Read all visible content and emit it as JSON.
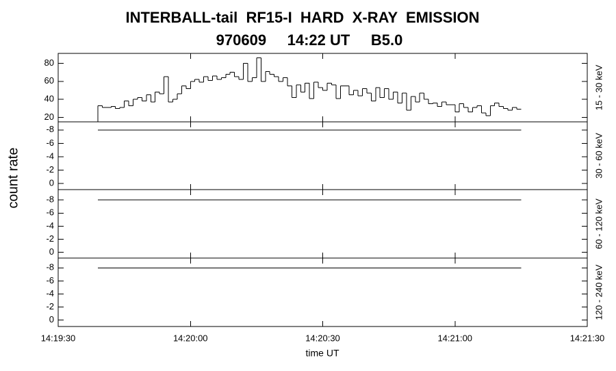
{
  "header": {
    "title": "INTERBALL-tail  RF15-I  HARD  X-RAY  EMISSION",
    "subtitle": "970609     14:22 UT     B5.0",
    "ylabel": "count rate",
    "xlabel": "time UT"
  },
  "chart_data": [
    {
      "type": "step",
      "label": "15 - 30 keV",
      "color": "#000000",
      "ylim": [
        15,
        91
      ],
      "yticks": [
        20,
        40,
        60,
        80
      ],
      "x": [
        "14:19:39",
        "14:19:40",
        "14:19:41",
        "14:19:42",
        "14:19:43",
        "14:19:44",
        "14:19:45",
        "14:19:46",
        "14:19:47",
        "14:19:48",
        "14:19:49",
        "14:19:50",
        "14:19:51",
        "14:19:52",
        "14:19:53",
        "14:19:54",
        "14:19:55",
        "14:19:56",
        "14:19:57",
        "14:19:58",
        "14:19:59",
        "14:20:00",
        "14:20:01",
        "14:20:02",
        "14:20:03",
        "14:20:04",
        "14:20:05",
        "14:20:06",
        "14:20:07",
        "14:20:08",
        "14:20:09",
        "14:20:10",
        "14:20:11",
        "14:20:12",
        "14:20:13",
        "14:20:14",
        "14:20:15",
        "14:20:16",
        "14:20:17",
        "14:20:18",
        "14:20:19",
        "14:20:20",
        "14:20:21",
        "14:20:22",
        "14:20:23",
        "14:20:24",
        "14:20:25",
        "14:20:26",
        "14:20:27",
        "14:20:28",
        "14:20:29",
        "14:20:30",
        "14:20:31",
        "14:20:32",
        "14:20:33",
        "14:20:34",
        "14:20:35",
        "14:20:36",
        "14:20:37",
        "14:20:38",
        "14:20:39",
        "14:20:40",
        "14:20:41",
        "14:20:42",
        "14:20:43",
        "14:20:44",
        "14:20:45",
        "14:20:46",
        "14:20:47",
        "14:20:48",
        "14:20:49",
        "14:20:50",
        "14:20:51",
        "14:20:52",
        "14:20:53",
        "14:20:54",
        "14:20:55",
        "14:20:56",
        "14:20:57",
        "14:20:58",
        "14:20:59",
        "14:21:00",
        "14:21:01",
        "14:21:02",
        "14:21:03",
        "14:21:04",
        "14:21:05",
        "14:21:06",
        "14:21:07",
        "14:21:08",
        "14:21:09",
        "14:21:10",
        "14:21:11",
        "14:21:12",
        "14:21:13",
        "14:21:14"
      ],
      "values": [
        33,
        31,
        31,
        32,
        30,
        31,
        38,
        33,
        40,
        42,
        38,
        45,
        37,
        48,
        46,
        65,
        37,
        40,
        46,
        55,
        52,
        60,
        62,
        59,
        65,
        61,
        66,
        62,
        64,
        68,
        70,
        65,
        62,
        80,
        60,
        64,
        86,
        60,
        71,
        68,
        65,
        60,
        64,
        55,
        42,
        56,
        48,
        58,
        41,
        59,
        53,
        50,
        58,
        56,
        41,
        55,
        55,
        45,
        50,
        44,
        52,
        47,
        38,
        53,
        42,
        52,
        40,
        48,
        36,
        47,
        28,
        43,
        37,
        47,
        40,
        35,
        36,
        32,
        37,
        34,
        34,
        26,
        35,
        31,
        26,
        31,
        33,
        25,
        22,
        33,
        36,
        32,
        30,
        28,
        31,
        29
      ]
    },
    {
      "type": "line",
      "label": "30 - 60 keV",
      "color": "#000000",
      "ylim": [
        0.9,
        -9.2
      ],
      "yticks": [
        -8,
        -6,
        -4,
        -2,
        0
      ],
      "x": [
        "14:19:39",
        "14:21:15"
      ],
      "values": [
        -8,
        -8
      ]
    },
    {
      "type": "line",
      "label": "60 - 120 keV",
      "color": "#000000",
      "ylim": [
        0.9,
        -9.6
      ],
      "yticks": [
        -8,
        -6,
        -4,
        -2,
        0
      ],
      "x": [
        "14:19:39",
        "14:21:15"
      ],
      "values": [
        -8,
        -8
      ]
    },
    {
      "type": "line",
      "label": "120 - 240 keV",
      "color": "#000000",
      "ylim": [
        1.0,
        -9.5
      ],
      "yticks": [
        -8,
        -6,
        -4,
        -2,
        0
      ],
      "x": [
        "14:19:39",
        "14:21:15"
      ],
      "values": [
        -8,
        -8
      ],
      "xlim": [
        "14:19:30",
        "14:21:30"
      ],
      "xticks": [
        "14:19:30",
        "14:20:00",
        "14:20:30",
        "14:21:00",
        "14:21:30"
      ]
    }
  ]
}
